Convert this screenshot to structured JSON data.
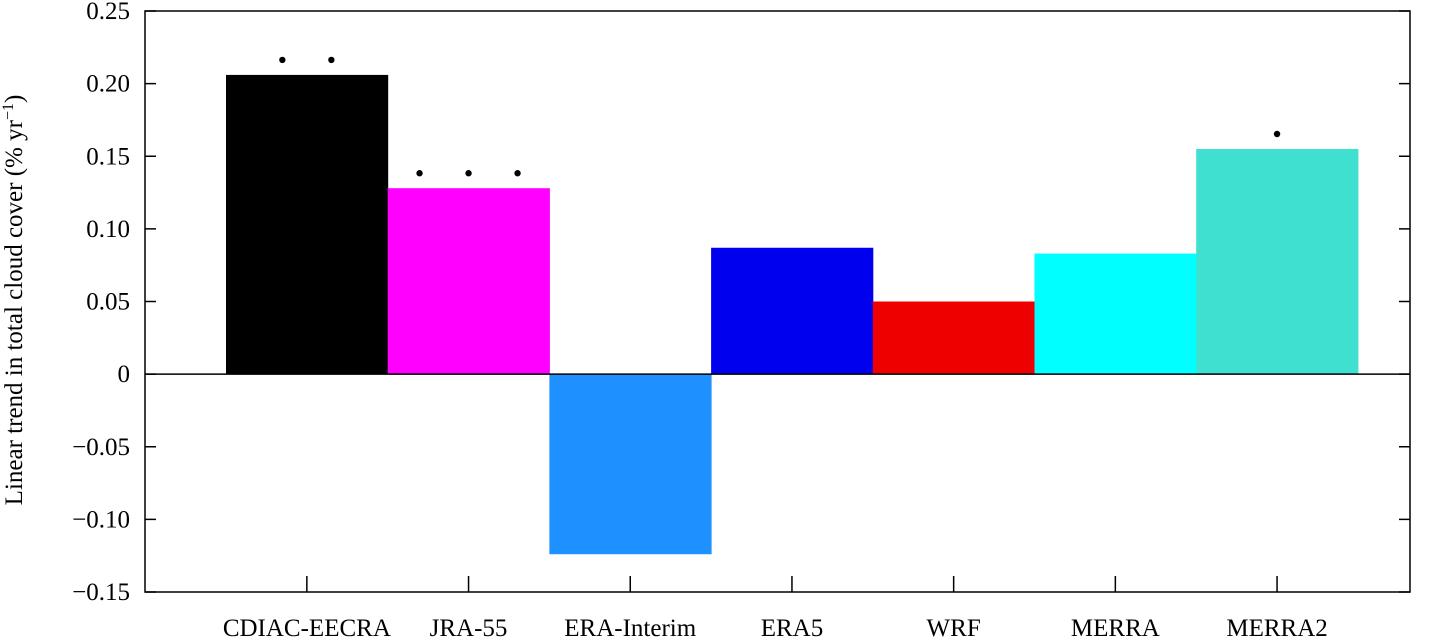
{
  "chart_data": {
    "type": "bar",
    "title": "",
    "xlabel": "",
    "ylabel": "Linear trend in total cloud cover (% yr",
    "ylabel_superscript": "−1",
    "ylabel_close": ")",
    "ylim": [
      -0.15,
      0.25
    ],
    "yticks": [
      -0.15,
      -0.1,
      -0.05,
      0,
      0.05,
      0.1,
      0.15,
      0.2,
      0.25
    ],
    "ytick_labels": [
      "−0.15",
      "−0.10",
      "−0.05",
      "0",
      "0.05",
      "0.10",
      "0.15",
      "0.20",
      "0.25"
    ],
    "categories": [
      "CDIAC-EECRA",
      "JRA-55",
      "ERA-Interim",
      "ERA5",
      "WRF",
      "MERRA",
      "MERRA2"
    ],
    "values": [
      0.206,
      0.128,
      -0.124,
      0.087,
      0.05,
      0.083,
      0.155
    ],
    "colors": [
      "#000000",
      "#ff00ff",
      "#1e90ff",
      "#0000ee",
      "#ee0000",
      "#00ffff",
      "#40e0d0"
    ],
    "significance_dots": [
      2,
      3,
      0,
      0,
      0,
      0,
      1
    ],
    "grid": false,
    "legend": "none"
  }
}
